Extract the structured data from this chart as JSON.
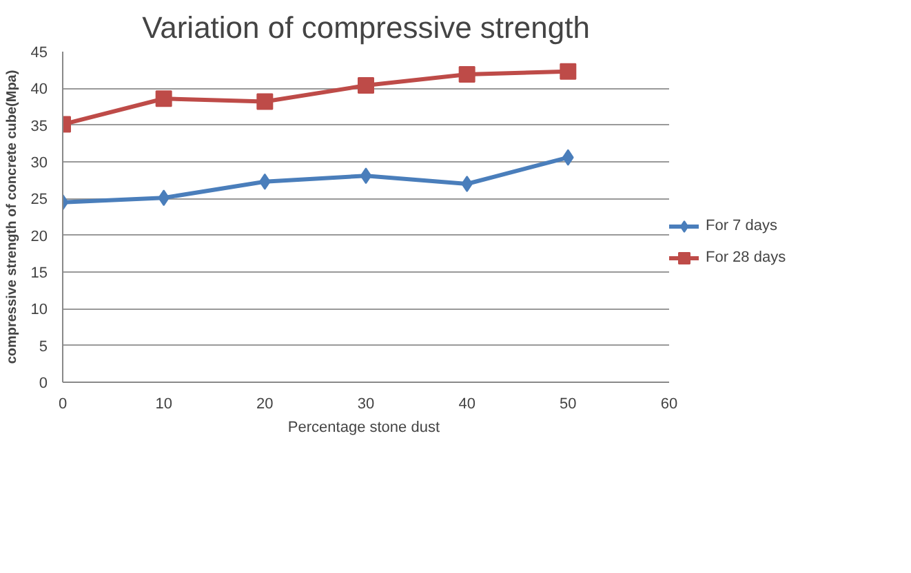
{
  "chart_data": {
    "type": "line",
    "title": "Variation of compressive strength",
    "xlabel": "Percentage  stone dust",
    "ylabel": "compressive strength of concrete cube(Mpa)",
    "x": [
      0,
      10,
      20,
      30,
      40,
      50
    ],
    "series": [
      {
        "name": "For 7 days",
        "color": "#4a7ebb",
        "marker": "diamond",
        "values": [
          24.5,
          25.1,
          27.3,
          28.1,
          27.0,
          30.6
        ]
      },
      {
        "name": "For 28 days",
        "color": "#be4b48",
        "marker": "square",
        "values": [
          35.1,
          38.6,
          38.2,
          40.4,
          41.9,
          42.3
        ]
      }
    ],
    "xlim": [
      0,
      60
    ],
    "xticks": [
      0,
      10,
      20,
      30,
      40,
      50,
      60
    ],
    "ylim": [
      0,
      45
    ],
    "yticks": [
      0,
      5,
      10,
      15,
      20,
      25,
      30,
      35,
      40,
      45
    ],
    "grid": "y",
    "legend": "right",
    "line_style": "solid"
  }
}
